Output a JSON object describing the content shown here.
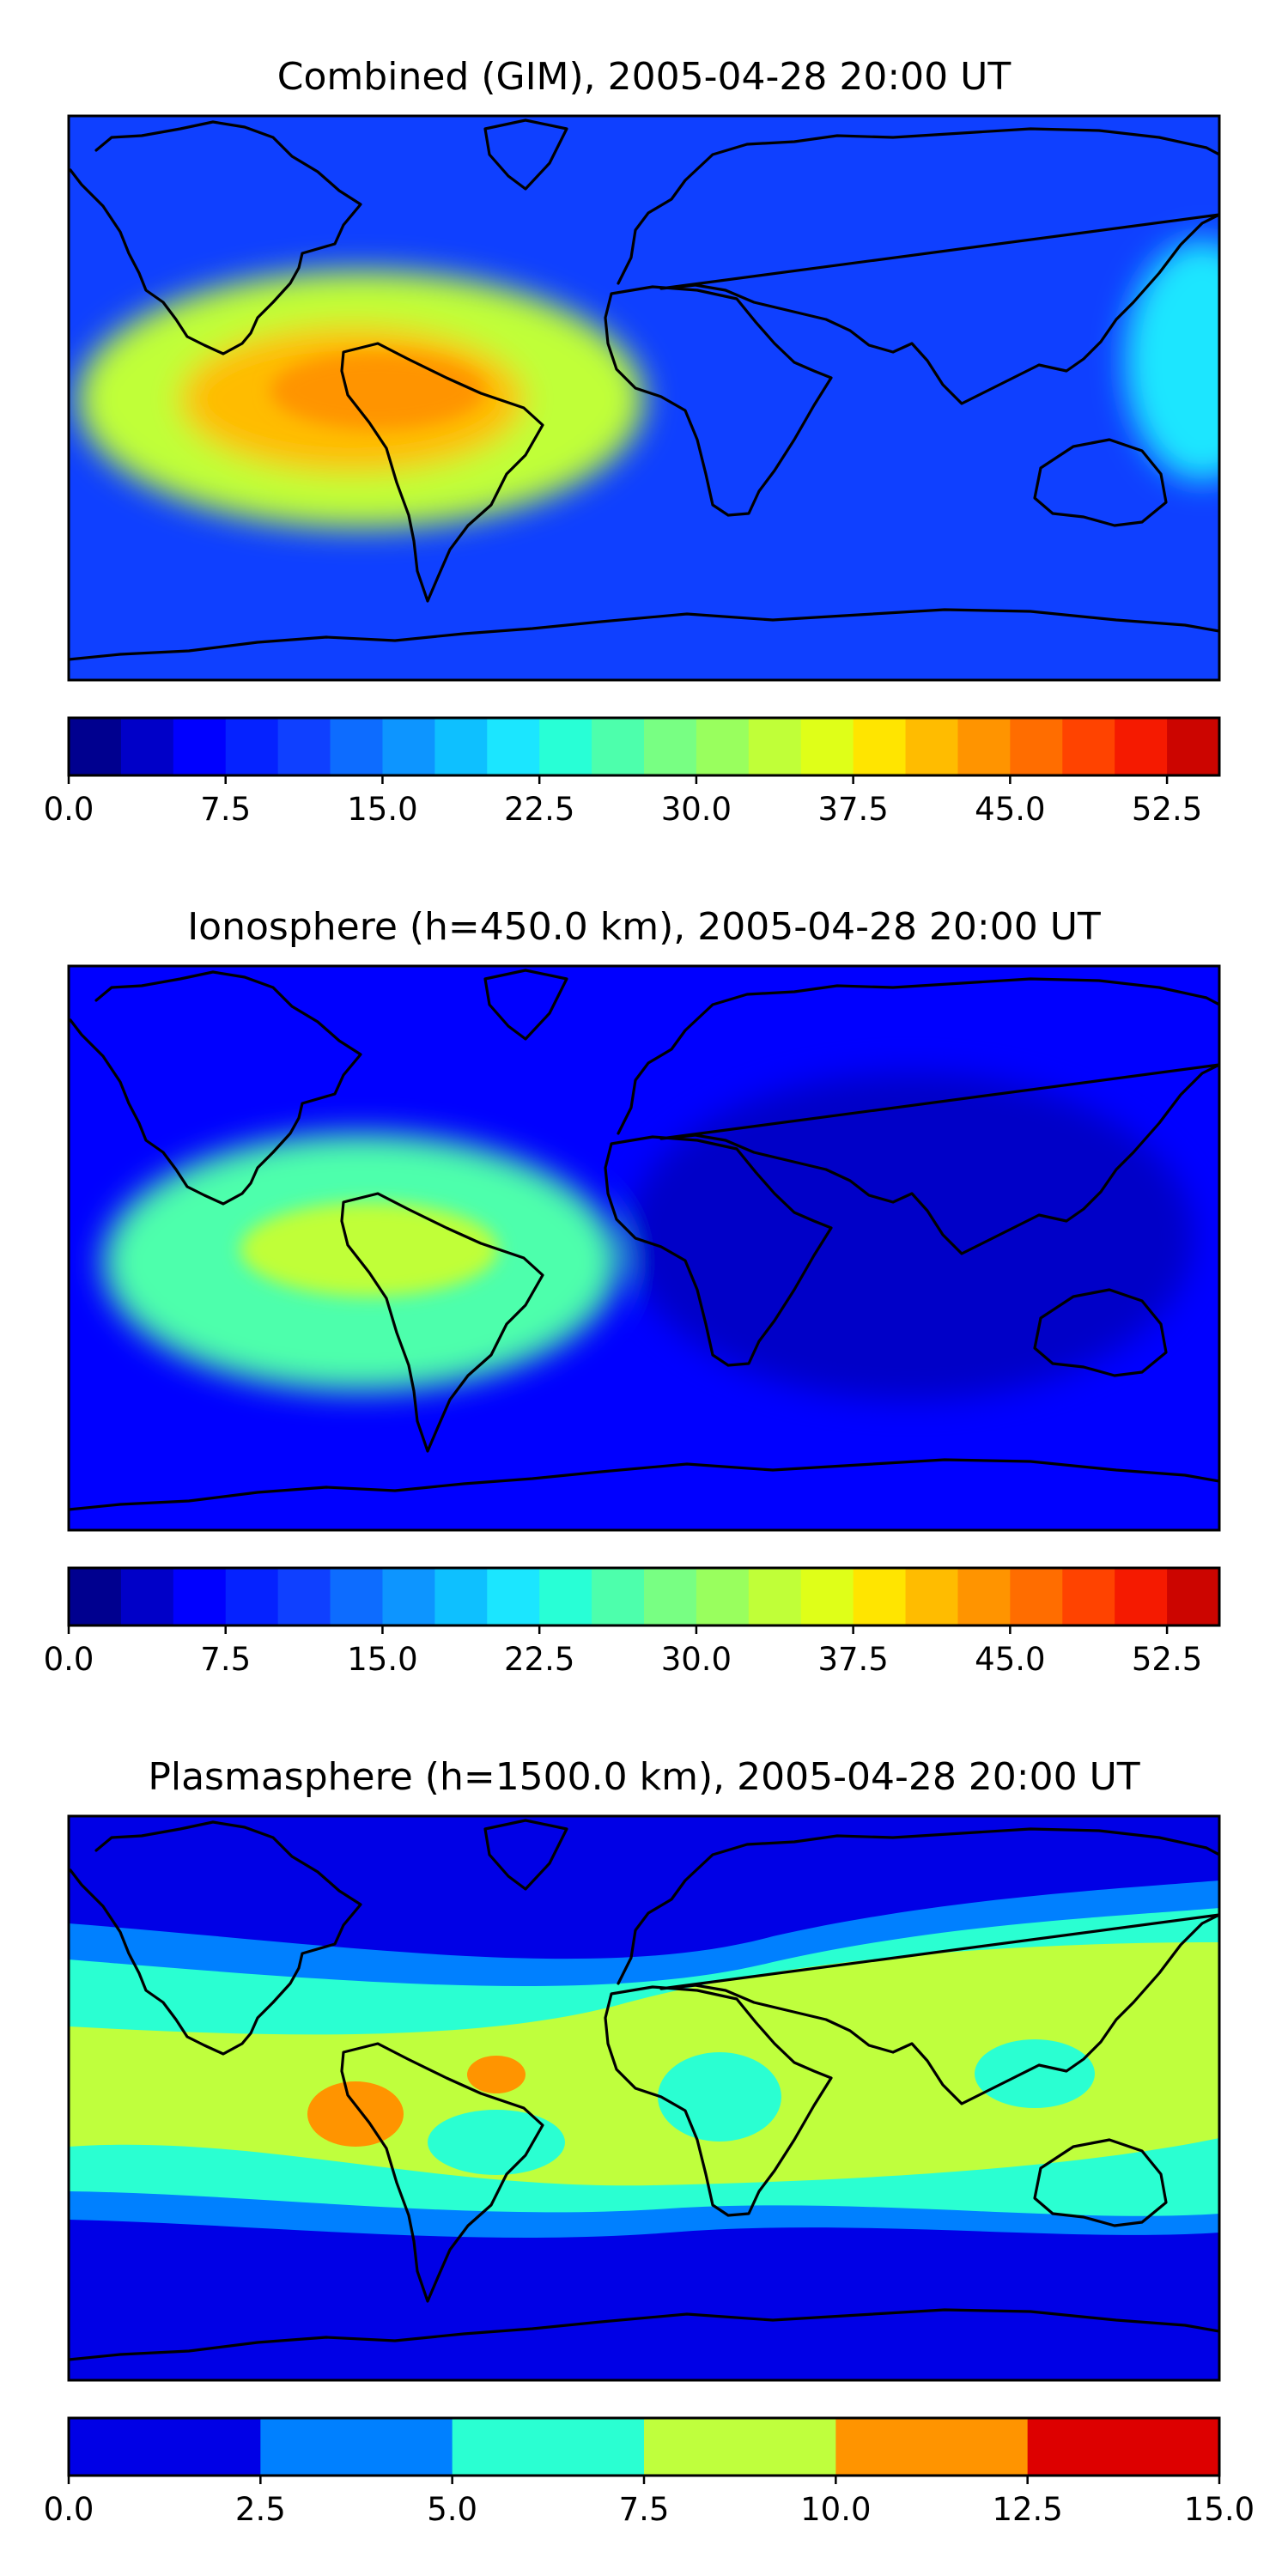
{
  "chart_data": [
    {
      "type": "heatmap",
      "title": "Combined (GIM), 2005-04-28 20:00 UT",
      "background_level": 10,
      "hotspots": [
        {
          "level": 34,
          "label": "equatorial anomaly over tropical Atlantic / South America"
        },
        {
          "level": 40,
          "label": "core west of South America"
        },
        {
          "level": 44,
          "label": "peak over northern South America"
        },
        {
          "level": 20,
          "label": "western Pacific enhancement"
        }
      ],
      "colorbar": {
        "levels": [
          0,
          2.5,
          5,
          7.5,
          10,
          12.5,
          15,
          17.5,
          20,
          22.5,
          25,
          27.5,
          30,
          32.5,
          35,
          37.5,
          40,
          42.5,
          45,
          47.5,
          50,
          52.5,
          55
        ],
        "colors": [
          "#00008f",
          "#0000c8",
          "#0000ff",
          "#0522ff",
          "#0f40ff",
          "#0d6cff",
          "#0d95ff",
          "#0ec0ff",
          "#1be6ff",
          "#28ffd6",
          "#4dffac",
          "#78ff83",
          "#99ff5e",
          "#c0ff38",
          "#dfff18",
          "#ffe500",
          "#ffbc00",
          "#ff9400",
          "#ff6d00",
          "#ff4300",
          "#f51a00",
          "#cc0500",
          "#8f0000"
        ],
        "ticks": [
          "0.0",
          "7.5",
          "15.0",
          "22.5",
          "30.0",
          "37.5",
          "45.0",
          "52.5"
        ],
        "range": [
          0,
          55
        ]
      }
    },
    {
      "type": "heatmap",
      "title": "Ionosphere  (h=450.0 km), 2005-04-28 20:00 UT",
      "background_level": 7,
      "hotspots": [
        {
          "level": 27,
          "label": "equatorial anomaly over tropical Atlantic / South America"
        },
        {
          "level": 33,
          "label": "core over northern South America"
        },
        {
          "level": 3,
          "label": "night-side low over Asia / Indian Ocean"
        }
      ],
      "colorbar": {
        "levels": [
          0,
          2.5,
          5,
          7.5,
          10,
          12.5,
          15,
          17.5,
          20,
          22.5,
          25,
          27.5,
          30,
          32.5,
          35,
          37.5,
          40,
          42.5,
          45,
          47.5,
          50,
          52.5,
          55
        ],
        "colors": [
          "#00008f",
          "#0000c8",
          "#0000ff",
          "#0522ff",
          "#0f40ff",
          "#0d6cff",
          "#0d95ff",
          "#0ec0ff",
          "#1be6ff",
          "#28ffd6",
          "#4dffac",
          "#78ff83",
          "#99ff5e",
          "#c0ff38",
          "#dfff18",
          "#ffe500",
          "#ffbc00",
          "#ff9400",
          "#ff6d00",
          "#ff4300",
          "#f51a00",
          "#cc0500",
          "#8f0000"
        ],
        "ticks": [
          "0.0",
          "7.5",
          "15.0",
          "22.5",
          "30.0",
          "37.5",
          "45.0",
          "52.5"
        ],
        "range": [
          0,
          55
        ]
      }
    },
    {
      "type": "heatmap",
      "title": "Plasmasphere (h=1500.0 km), 2005-04-28 20:00 UT",
      "background_level": 1.25,
      "hotspots": [
        {
          "level": 3.75,
          "label": "mid-latitude band"
        },
        {
          "level": 6.25,
          "label": "low-latitude band"
        },
        {
          "level": 8.75,
          "label": "equatorial band"
        },
        {
          "level": 11.25,
          "label": "maxima over South America"
        }
      ],
      "colorbar": {
        "levels": [
          0,
          2.5,
          5,
          7.5,
          10,
          12.5,
          15
        ],
        "colors": [
          "#0000e6",
          "#0080ff",
          "#2affd2",
          "#bfff3d",
          "#ff9400",
          "#dd0000"
        ],
        "ticks": [
          "0.0",
          "2.5",
          "5.0",
          "7.5",
          "10.0",
          "12.5",
          "15.0"
        ],
        "range": [
          0,
          15
        ]
      }
    }
  ]
}
